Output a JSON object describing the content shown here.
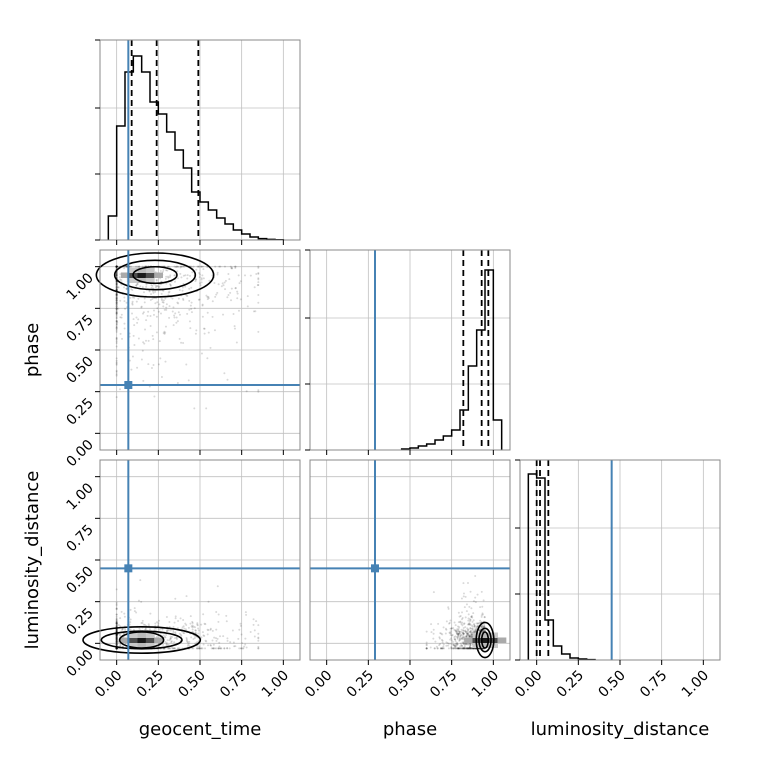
{
  "chart_data": {
    "type": "corner",
    "parameters": [
      "geocent_time",
      "phase",
      "luminosity_distance"
    ],
    "truths": {
      "geocent_time": 0.07,
      "phase": 0.29,
      "luminosity_distance": 0.45
    },
    "axes_range": [
      -0.1,
      1.1
    ],
    "tick_values": [
      0.0,
      0.25,
      0.5,
      0.75,
      1.0
    ],
    "tick_labels": [
      "0.00",
      "0.25",
      "0.50",
      "0.75",
      "1.00"
    ],
    "grid": true,
    "colors": {
      "truth": "#4682b4",
      "line": "#000000",
      "background": "#ffffff",
      "grid": "#c0c0c0"
    },
    "diagonal": [
      {
        "parameter": "geocent_time",
        "type": "histogram",
        "bin_edges": [
          -0.05,
          0.0,
          0.05,
          0.1,
          0.15,
          0.2,
          0.25,
          0.3,
          0.35,
          0.4,
          0.45,
          0.5,
          0.55,
          0.6,
          0.65,
          0.7,
          0.75,
          0.8,
          0.85,
          0.9,
          0.95,
          1.0
        ],
        "counts": [
          0.12,
          0.57,
          0.84,
          0.92,
          0.84,
          0.69,
          0.63,
          0.54,
          0.45,
          0.36,
          0.24,
          0.19,
          0.15,
          0.11,
          0.08,
          0.05,
          0.03,
          0.015,
          0.007,
          0.003,
          0.001
        ],
        "quantiles": [
          0.09,
          0.24,
          0.49
        ]
      },
      {
        "parameter": "phase",
        "type": "histogram",
        "bin_edges": [
          0.45,
          0.5,
          0.55,
          0.6,
          0.65,
          0.7,
          0.75,
          0.8,
          0.85,
          0.9,
          0.95,
          1.0,
          1.05
        ],
        "counts": [
          0.005,
          0.01,
          0.02,
          0.03,
          0.05,
          0.07,
          0.1,
          0.2,
          0.42,
          0.6,
          0.9,
          0.15
        ],
        "quantiles": [
          0.82,
          0.93,
          0.97
        ]
      },
      {
        "parameter": "luminosity_distance",
        "type": "histogram",
        "bin_edges": [
          -0.05,
          0.0,
          0.05,
          0.1,
          0.15,
          0.2,
          0.25,
          0.3,
          0.35
        ],
        "counts": [
          0.93,
          0.91,
          0.2,
          0.07,
          0.03,
          0.01,
          0.005,
          0.002
        ],
        "quantiles": [
          0.0,
          0.02,
          0.07
        ]
      }
    ],
    "off_diagonal": [
      {
        "x": "geocent_time",
        "y": "phase",
        "type": "2d-density",
        "peak": {
          "x": 0.15,
          "y": 0.95
        },
        "spread": {
          "x": 0.2,
          "y": 0.05
        },
        "scatter_extent": {
          "x": [
            0.0,
            0.85
          ],
          "y": [
            0.15,
            1.0
          ]
        }
      },
      {
        "x": "geocent_time",
        "y": "luminosity_distance",
        "type": "2d-density",
        "peak": {
          "x": 0.15,
          "y": 0.02
        },
        "spread": {
          "x": 0.2,
          "y": 0.03
        },
        "scatter_extent": {
          "x": [
            0.0,
            0.85
          ],
          "y": [
            -0.03,
            0.7
          ]
        }
      },
      {
        "x": "phase",
        "y": "luminosity_distance",
        "type": "2d-density",
        "peak": {
          "x": 0.95,
          "y": 0.02
        },
        "spread": {
          "x": 0.03,
          "y": 0.04
        },
        "scatter_extent": {
          "x": [
            0.6,
            1.0
          ],
          "y": [
            -0.03,
            0.65
          ]
        }
      }
    ]
  }
}
